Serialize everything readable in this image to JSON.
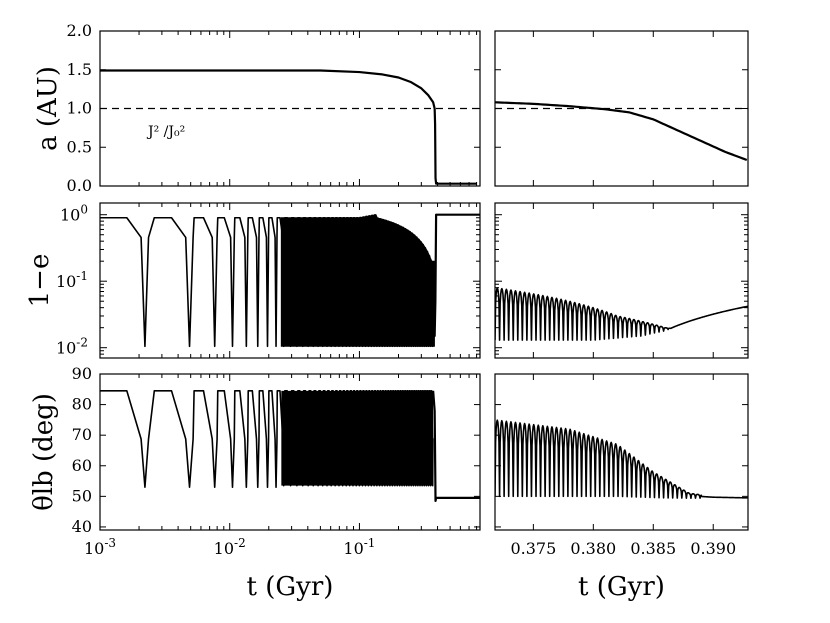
{
  "chart_data": [
    {
      "id": "a-left",
      "type": "line",
      "xlabel": "",
      "ylabel": "a (AU)",
      "xscale": "log",
      "xlim": [
        0.001,
        0.85
      ],
      "ylim": [
        0.0,
        2.0
      ],
      "yticks": [
        "0.0",
        "0.5",
        "1.0",
        "1.5",
        "2.0"
      ],
      "annotation": "J² /J₀²",
      "reference_line": {
        "y": 1.0,
        "style": "dashed"
      },
      "series": [
        {
          "x": [
            0.001,
            0.01,
            0.05,
            0.1,
            0.15,
            0.2,
            0.25,
            0.3,
            0.34,
            0.37,
            0.38,
            0.383,
            0.386,
            0.39,
            0.8
          ],
          "y": [
            1.49,
            1.49,
            1.49,
            1.47,
            1.44,
            1.4,
            1.34,
            1.26,
            1.17,
            1.08,
            1.0,
            0.8,
            0.1,
            0.03,
            0.03
          ]
        }
      ]
    },
    {
      "id": "a-right",
      "type": "line",
      "xscale": "linear",
      "xlim": [
        0.3718,
        0.3929
      ],
      "ylim": [
        0.0,
        2.0
      ],
      "reference_line": {
        "y": 1.0,
        "style": "dashed"
      },
      "series": [
        {
          "x": [
            0.3718,
            0.375,
            0.378,
            0.381,
            0.383,
            0.385,
            0.387,
            0.389,
            0.391,
            0.3929
          ],
          "y": [
            1.08,
            1.06,
            1.03,
            0.99,
            0.95,
            0.86,
            0.72,
            0.58,
            0.44,
            0.33
          ]
        }
      ]
    },
    {
      "id": "e-left",
      "type": "line",
      "xlabel": "",
      "ylabel": "1−e",
      "xscale": "log",
      "yscale": "log",
      "xlim": [
        0.001,
        0.85
      ],
      "ylim": [
        0.007,
        1.5
      ],
      "yticks": [
        {
          "base": "10",
          "exp": "0"
        },
        {
          "base": "10",
          "exp": "-1"
        },
        {
          "base": "10",
          "exp": "-2"
        }
      ],
      "oscillation": {
        "first_minimum": 0.00222,
        "first_spacing": 0.00268,
        "spacing_growth": 1.03,
        "end": 0.38,
        "max_value": 0.9,
        "min_value": 0.0105,
        "final_value": 1.0,
        "dense_from": 0.025
      }
    },
    {
      "id": "e-right",
      "type": "line",
      "xscale": "linear",
      "yscale": "log",
      "xlim": [
        0.3718,
        0.3929
      ],
      "ylim": [
        0.007,
        1.5
      ],
      "oscillation": {
        "period": 0.00038,
        "upper_envelope": {
          "x": [
            0.3718,
            0.378,
            0.382,
            0.386,
            0.388
          ],
          "y": [
            0.08,
            0.05,
            0.03,
            0.02,
            0.018
          ]
        },
        "lower_envelope": {
          "x": [
            0.3718,
            0.38,
            0.384,
            0.386,
            0.3929
          ],
          "y": [
            0.013,
            0.013,
            0.015,
            0.018,
            0.042
          ]
        }
      }
    },
    {
      "id": "theta-left",
      "type": "line",
      "xlabel": "t (Gyr)",
      "ylabel": "θlb (deg)",
      "xscale": "log",
      "xlim": [
        0.001,
        0.85
      ],
      "ylim": [
        39,
        90
      ],
      "yticks": [
        "40",
        "50",
        "60",
        "70",
        "80",
        "90"
      ],
      "xticks": [
        {
          "base": "10",
          "exp": "-3"
        },
        {
          "base": "10",
          "exp": "-2"
        },
        {
          "base": "10",
          "exp": "-1"
        }
      ],
      "oscillation": {
        "first_minimum": 0.00222,
        "first_spacing": 0.00268,
        "spacing_growth": 1.03,
        "end": 0.38,
        "max_value": 84.5,
        "min_value": 53,
        "dense_min_value": 53.5,
        "final_value": 49.5
      }
    },
    {
      "id": "theta-right",
      "type": "line",
      "xlabel": "t (Gyr)",
      "xscale": "linear",
      "xlim": [
        0.3718,
        0.3929
      ],
      "ylim": [
        39,
        90
      ],
      "xticks": [
        "0.375",
        "0.380",
        "0.385",
        "0.390"
      ],
      "oscillation": {
        "period": 0.00038,
        "upper_envelope": {
          "x": [
            0.3718,
            0.378,
            0.382,
            0.385,
            0.388,
            0.39,
            0.3929
          ],
          "y": [
            75,
            72,
            67,
            58,
            51,
            50,
            49.5
          ]
        },
        "lower_envelope": {
          "x": [
            0.3718,
            0.382,
            0.386,
            0.388,
            0.3929
          ],
          "y": [
            50,
            50,
            49.5,
            49.4,
            49.5
          ]
        }
      }
    }
  ]
}
